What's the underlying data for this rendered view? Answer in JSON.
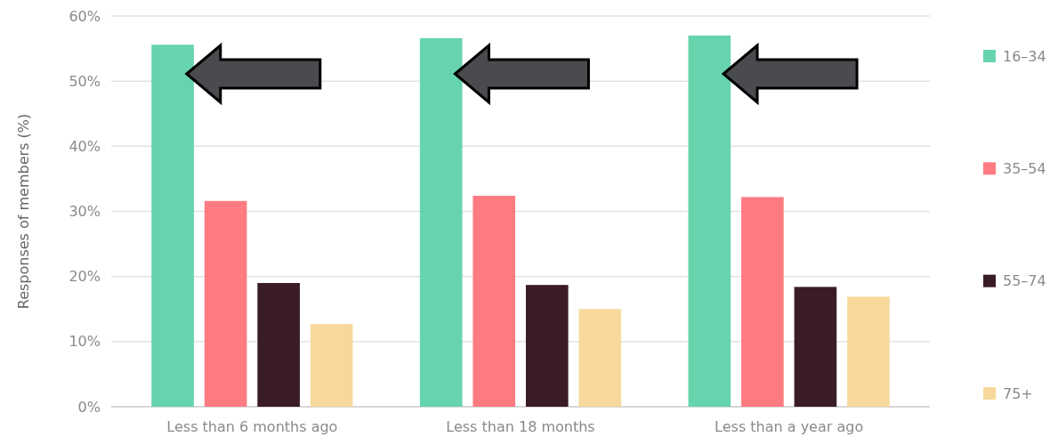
{
  "chart_data": {
    "type": "bar",
    "ylabel": "Responses of members (%)",
    "categories": [
      "Less than 6 months ago",
      "Less than 18 months",
      "Less than a year ago"
    ],
    "series": [
      {
        "name": "16–34",
        "color": "#66d4ac",
        "values": [
          55.6,
          56.6,
          57.0
        ]
      },
      {
        "name": "35–54",
        "color": "#ff7b82",
        "values": [
          31.6,
          32.4,
          32.2
        ]
      },
      {
        "name": "55–74",
        "color": "#3a1b28",
        "values": [
          19.0,
          18.7,
          18.4
        ]
      },
      {
        "name": "75+",
        "color": "#f8d99b",
        "values": [
          12.7,
          15.0,
          16.9
        ]
      }
    ],
    "ylim": [
      0,
      60
    ],
    "yticks": [
      {
        "value": 0,
        "label": "0%"
      },
      {
        "value": 10,
        "label": "10%"
      },
      {
        "value": 20,
        "label": "20%"
      },
      {
        "value": 30,
        "label": "30%"
      },
      {
        "value": 40,
        "label": "40%"
      },
      {
        "value": 50,
        "label": "50%"
      },
      {
        "value": 60,
        "label": "60%"
      }
    ],
    "grid": "y",
    "legend": "right"
  }
}
